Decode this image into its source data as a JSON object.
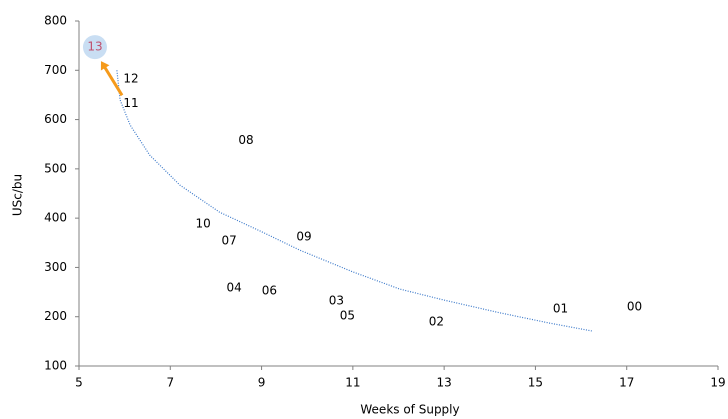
{
  "chart_data": {
    "type": "scatter",
    "x_label": "Weeks of Supply",
    "y_label": "USc/bu",
    "point_labels": [
      "00",
      "01",
      "02",
      "03",
      "04",
      "05",
      "06",
      "07",
      "08",
      "09",
      "10",
      "11",
      "12",
      "13"
    ],
    "x": [
      17.17,
      15.55,
      12.83,
      10.64,
      8.4,
      10.88,
      9.17,
      8.29,
      8.66,
      9.93,
      7.72,
      6.14,
      6.14,
      5.35
    ],
    "values": [
      220,
      216,
      189,
      232,
      258,
      201,
      252,
      354,
      558,
      362,
      388,
      633,
      682,
      747
    ],
    "color": "#000000",
    "highlight_point": 13,
    "highlight_color": "#c9def3",
    "highlight_text_color": "#c0506e",
    "arrow_color": "#f59a1b",
    "trendline": {
      "x": [
        5.83,
        5.9,
        6.12,
        6.55,
        7.21,
        8.08,
        9.01,
        9.84,
        11.0,
        12.03,
        12.99,
        14.22,
        15.31,
        16.24
      ],
      "values": [
        700,
        640,
        589,
        528,
        467,
        412,
        372,
        335,
        291,
        256,
        234,
        208,
        187,
        171
      ],
      "color": "#3a78c9"
    },
    "xlim": [
      5,
      19
    ],
    "xticks": [
      5,
      7,
      9,
      11,
      13,
      15,
      17,
      19
    ],
    "ylim": [
      100,
      800
    ],
    "yticks": [
      100,
      200,
      300,
      400,
      500,
      600,
      700,
      800
    ]
  }
}
